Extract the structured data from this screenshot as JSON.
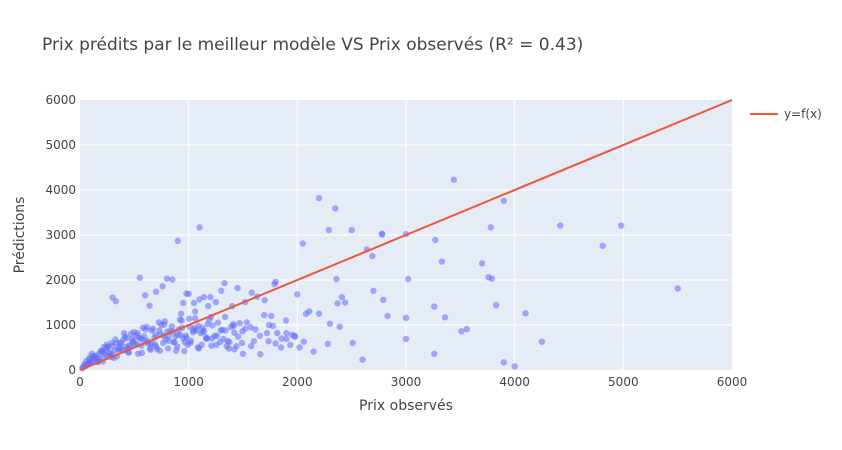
{
  "chart_data": {
    "type": "scatter",
    "title": "Prix prédits par le meilleur modèle VS Prix observés (R² = 0.43)",
    "xlabel": "Prix observés",
    "ylabel": "Prédictions",
    "xlim": [
      0,
      6000
    ],
    "ylim": [
      0,
      6000
    ],
    "xticks": [
      0,
      1000,
      2000,
      3000,
      4000,
      5000,
      6000
    ],
    "yticks": [
      0,
      1000,
      2000,
      3000,
      4000,
      5000,
      6000
    ],
    "grid": true,
    "legend_position": "right",
    "colors": {
      "scatter": "#636efa",
      "line": "#ef553b",
      "plot_bg": "#e5ecf6"
    },
    "series": [
      {
        "type": "line",
        "name": "y=f(x)",
        "x": [
          0,
          6000
        ],
        "y": [
          0,
          6000
        ]
      },
      {
        "type": "scatter",
        "x": [
          3440,
          2200,
          2350,
          2290,
          2500,
          1100,
          900,
          3900,
          4420,
          4980,
          3780,
          3270,
          2780,
          2780,
          3000,
          2640,
          2690,
          2050,
          3330,
          4810,
          3700,
          3790,
          3760,
          3020,
          2360,
          2410,
          1800,
          1790,
          2700,
          2790,
          3830,
          5500,
          3260,
          2440,
          4100,
          2000,
          2370,
          3360,
          3000,
          2830,
          3560,
          3510,
          3000,
          4250,
          2510,
          2280,
          2600,
          3260,
          3900,
          4000,
          2110,
          2200,
          2300,
          2390,
          1900,
          1740,
          2080,
          1980,
          2060,
          2150,
          1630,
          1700,
          1760,
          1850,
          1300,
          1330,
          1450,
          1520,
          1580,
          1200,
          1250,
          1400,
          1100,
          1140,
          1180,
          1000,
          1050,
          1060,
          930,
          950,
          980,
          850,
          800,
          760,
          700,
          640,
          600,
          550,
          300,
          330,
          1350,
          1420,
          1500,
          1600,
          1660,
          1720,
          1800,
          1900,
          1950,
          2020,
          50,
          80,
          120,
          140,
          160,
          180,
          200,
          230,
          260,
          280,
          310,
          350,
          380,
          420,
          450,
          480,
          520,
          560,
          610,
          650,
          690,
          730,
          770,
          810,
          860,
          900,
          940,
          980,
          1020,
          1070,
          1120,
          1170,
          1220,
          1270,
          1320,
          1370,
          1420,
          1470,
          1520,
          1570,
          60,
          90,
          110,
          150,
          190,
          220,
          250,
          290,
          320,
          360,
          400,
          440,
          470,
          510,
          540,
          580,
          620,
          660,
          700,
          740,
          780,
          820,
          870,
          910,
          950,
          990,
          1040,
          1090,
          1140,
          1190,
          1240,
          1290,
          1340,
          1390,
          1440,
          1490,
          30,
          70,
          100,
          130,
          170,
          210,
          240,
          270,
          300,
          340,
          370,
          410,
          430,
          460,
          490,
          530,
          570,
          590,
          630,
          670,
          710,
          750,
          790,
          830,
          880,
          920,
          960,
          1010,
          1060,
          1110,
          1160,
          1210,
          1260,
          1310,
          1360,
          1410,
          40,
          85,
          125,
          165,
          205,
          245,
          285,
          325,
          365,
          405,
          445,
          485,
          525,
          565,
          605,
          645,
          685,
          725,
          765,
          805,
          845,
          885,
          925,
          965,
          1005,
          1045,
          1085,
          1125,
          1165,
          1205,
          20,
          55,
          95,
          135,
          175,
          215,
          255,
          295,
          335,
          375,
          415,
          455,
          495,
          535,
          575,
          615,
          655,
          695,
          735,
          775,
          815,
          855,
          895,
          935,
          975,
          1015,
          1055,
          1095,
          1135,
          1175,
          1215,
          1255,
          1295,
          1335,
          1375,
          1415,
          1455,
          1495,
          1535,
          1575,
          1615,
          1655,
          1695,
          1735,
          1775,
          1815,
          1855,
          1895,
          1935,
          1975
        ],
        "y": [
          4230,
          3820,
          3590,
          3110,
          3110,
          3170,
          2870,
          3760,
          3210,
          3210,
          3170,
          2890,
          3010,
          3030,
          3020,
          2680,
          2530,
          2810,
          2410,
          2760,
          2370,
          2030,
          2060,
          2020,
          2020,
          1620,
          1960,
          1910,
          1760,
          1560,
          1440,
          1810,
          1410,
          1500,
          1260,
          1680,
          1480,
          1170,
          1160,
          1200,
          910,
          860,
          690,
          630,
          600,
          580,
          230,
          360,
          170,
          80,
          1300,
          1250,
          1030,
          960,
          820,
          1000,
          1250,
          740,
          630,
          410,
          1630,
          1550,
          1200,
          500,
          1760,
          1930,
          1820,
          1510,
          1720,
          1620,
          1510,
          1420,
          1570,
          1620,
          1420,
          1690,
          1490,
          1300,
          1250,
          1490,
          1700,
          2010,
          2030,
          1860,
          1740,
          1430,
          1660,
          2050,
          1610,
          1530,
          530,
          460,
          360,
          640,
          350,
          820,
          590,
          690,
          780,
          500,
          100,
          150,
          220,
          310,
          180,
          260,
          420,
          330,
          510,
          380,
          270,
          450,
          600,
          520,
          390,
          690,
          580,
          700,
          620,
          450,
          570,
          880,
          760,
          480,
          620,
          790,
          940,
          720,
          650,
          880,
          560,
          700,
          990,
          1050,
          690,
          480,
          830,
          1040,
          920,
          950,
          200,
          280,
          360,
          240,
          420,
          510,
          300,
          600,
          440,
          520,
          680,
          480,
          800,
          560,
          720,
          940,
          650,
          880,
          520,
          790,
          1080,
          760,
          620,
          900,
          700,
          560,
          840,
          980,
          880,
          1120,
          760,
          620,
          880,
          960,
          530,
          600,
          60,
          120,
          160,
          260,
          350,
          190,
          470,
          380,
          540,
          300,
          610,
          440,
          710,
          520,
          640,
          820,
          380,
          750,
          590,
          920,
          460,
          1000,
          680,
          860,
          750,
          1120,
          420,
          960,
          1150,
          820,
          700,
          540,
          760,
          890,
          640,
          1020,
          130,
          240,
          310,
          180,
          420,
          560,
          290,
          680,
          470,
          820,
          390,
          620,
          760,
          540,
          900,
          480,
          720,
          1060,
          600,
          850,
          970,
          430,
          780,
          620,
          1140,
          880,
          500,
          940,
          720,
          1180,
          40,
          90,
          170,
          280,
          220,
          390,
          510,
          330,
          600,
          470,
          740,
          550,
          840,
          360,
          680,
          960,
          590,
          780,
          430,
          1010,
          650,
          860,
          520,
          1100,
          760,
          600,
          930,
          480,
          840,
          1020,
          700,
          560,
          880,
          1180,
          620,
          980,
          740,
          860,
          1060,
          530,
          900,
          760,
          1220,
          640,
          980,
          820,
          700,
          1100,
          560,
          760
        ]
      }
    ]
  }
}
